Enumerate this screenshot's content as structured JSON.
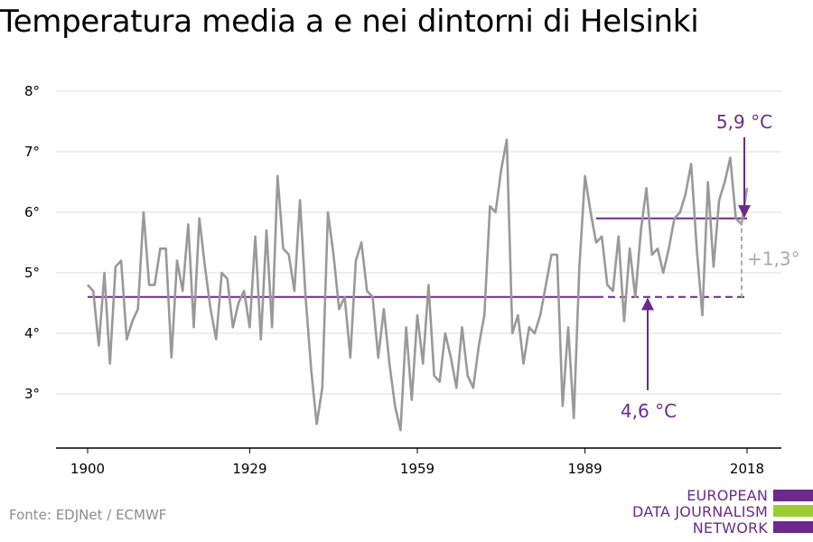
{
  "title": "Temperatura media a e nei dintorni di Helsinki",
  "source": "Fonte: EDJNet / ECMWF",
  "logo": {
    "lines": [
      "EUROPEAN",
      "DATA JOURNALISM",
      "NETWORK"
    ]
  },
  "colors": {
    "series": "#999999",
    "accent": "#6b2a8c",
    "grid": "#dddddd",
    "logo_green": "#9acd32",
    "diff": "#aaaaaa"
  },
  "chart_data": {
    "type": "line",
    "title": "Temperatura media a e nei dintorni di Helsinki",
    "xlabel": "",
    "ylabel": "",
    "xlim": [
      1900,
      2018
    ],
    "ylim": [
      2,
      8
    ],
    "x_ticks": [
      1900,
      1929,
      1959,
      1989,
      2018
    ],
    "y_ticks": [
      3,
      4,
      5,
      6,
      7,
      8
    ],
    "y_tick_labels": [
      "3°",
      "4°",
      "5°",
      "6°",
      "7°",
      "8°"
    ],
    "grid": true,
    "x": [
      1900,
      1901,
      1902,
      1903,
      1904,
      1905,
      1906,
      1907,
      1908,
      1909,
      1910,
      1911,
      1912,
      1913,
      1914,
      1915,
      1916,
      1917,
      1918,
      1919,
      1920,
      1921,
      1922,
      1923,
      1924,
      1925,
      1926,
      1927,
      1928,
      1929,
      1930,
      1931,
      1932,
      1933,
      1934,
      1935,
      1936,
      1937,
      1938,
      1939,
      1940,
      1941,
      1942,
      1943,
      1944,
      1945,
      1946,
      1947,
      1948,
      1949,
      1950,
      1951,
      1952,
      1953,
      1954,
      1955,
      1956,
      1957,
      1958,
      1959,
      1960,
      1961,
      1962,
      1963,
      1964,
      1965,
      1966,
      1967,
      1968,
      1969,
      1970,
      1971,
      1972,
      1973,
      1974,
      1975,
      1976,
      1977,
      1978,
      1979,
      1980,
      1981,
      1982,
      1983,
      1984,
      1985,
      1986,
      1987,
      1988,
      1989,
      1990,
      1991,
      1992,
      1993,
      1994,
      1995,
      1996,
      1997,
      1998,
      1999,
      2000,
      2001,
      2002,
      2003,
      2004,
      2005,
      2006,
      2007,
      2008,
      2009,
      2010,
      2011,
      2012,
      2013,
      2014,
      2015,
      2016,
      2017,
      2018
    ],
    "series": [
      {
        "values": [
          4.8,
          4.7,
          3.8,
          5.0,
          3.5,
          5.1,
          5.2,
          3.9,
          4.2,
          4.4,
          6.0,
          4.8,
          4.8,
          5.4,
          5.4,
          3.6,
          5.2,
          4.7,
          5.8,
          4.1,
          5.9,
          5.1,
          4.4,
          3.9,
          5.0,
          4.9,
          4.1,
          4.5,
          4.7,
          4.1,
          5.6,
          3.9,
          5.7,
          4.1,
          6.6,
          5.4,
          5.3,
          4.7,
          6.2,
          4.6,
          3.4,
          2.5,
          3.1,
          6.0,
          5.3,
          4.4,
          4.6,
          3.6,
          5.2,
          5.5,
          4.7,
          4.6,
          3.6,
          4.4,
          3.5,
          2.8,
          2.4,
          4.1,
          2.9,
          4.3,
          3.5,
          4.8,
          3.3,
          3.2,
          4.0,
          3.6,
          3.1,
          4.1,
          3.3,
          3.1,
          3.8,
          4.3,
          6.1,
          6.0,
          6.7,
          7.2,
          4.0,
          4.3,
          3.5,
          4.1,
          4.0,
          4.3,
          4.8,
          5.3,
          5.3,
          2.8,
          4.1,
          2.6,
          5.1,
          6.6,
          6.0,
          5.5,
          5.6,
          4.8,
          4.7,
          5.6,
          4.2,
          5.4,
          4.6,
          5.7,
          6.4,
          5.3,
          5.4,
          5.0,
          5.4,
          5.9,
          6.0,
          6.3,
          6.8,
          5.4,
          4.3,
          6.5,
          5.1,
          6.2,
          6.5,
          6.9,
          5.9,
          5.8,
          6.4
        ]
      }
    ],
    "reference_lines": [
      {
        "label": "4,6 °C",
        "value": 4.6
      },
      {
        "label": "5,9 °C",
        "value": 5.9
      }
    ],
    "difference_label": "+1,3°"
  }
}
